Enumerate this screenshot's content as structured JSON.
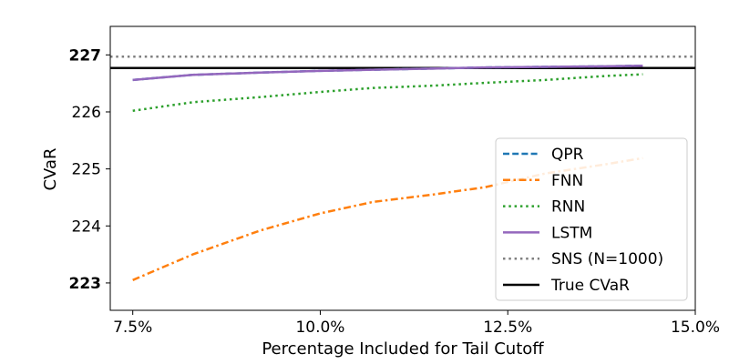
{
  "chart_data": {
    "type": "line",
    "title": "",
    "xlabel": "Percentage Included for Tail Cutoff",
    "ylabel": "CVaR",
    "xlim": [
      7.2,
      15.0
    ],
    "ylim": [
      222.52,
      227.5
    ],
    "grid": false,
    "legend_position": "bottom-right",
    "x_ticks": [
      {
        "value": 7.5,
        "label": "7.5%"
      },
      {
        "value": 10.0,
        "label": "10.0%"
      },
      {
        "value": 12.5,
        "label": "12.5%"
      },
      {
        "value": 15.0,
        "label": "15.0%"
      }
    ],
    "y_ticks": [
      {
        "value": 223,
        "label": "223",
        "bold": true
      },
      {
        "value": 224,
        "label": "224",
        "bold": false
      },
      {
        "value": 225,
        "label": "225",
        "bold": false
      },
      {
        "value": 226,
        "label": "226",
        "bold": false
      },
      {
        "value": 227,
        "label": "227",
        "bold": true
      }
    ],
    "series": [
      {
        "name": "QPR",
        "color": "#1f77b4",
        "style": "dashed",
        "x": [
          7.5,
          8.3,
          9.2,
          10.0,
          10.7,
          11.5,
          12.2,
          13.0,
          13.8,
          14.3
        ],
        "y": [
          226.56,
          226.65,
          226.69,
          226.72,
          226.74,
          226.76,
          226.78,
          226.79,
          226.8,
          226.81
        ]
      },
      {
        "name": "FNN",
        "color": "#ff7f0e",
        "style": "dashdot",
        "x": [
          7.5,
          8.3,
          9.2,
          10.0,
          10.7,
          11.5,
          12.2,
          13.0,
          13.8,
          14.3
        ],
        "y": [
          223.05,
          223.5,
          223.92,
          224.22,
          224.42,
          224.55,
          224.68,
          224.92,
          225.08,
          225.19
        ]
      },
      {
        "name": "RNN",
        "color": "#2ca02c",
        "style": "dotted",
        "x": [
          7.5,
          8.3,
          9.2,
          10.0,
          10.7,
          11.5,
          12.2,
          13.0,
          13.8,
          14.3
        ],
        "y": [
          226.02,
          226.17,
          226.26,
          226.35,
          226.42,
          226.46,
          226.51,
          226.56,
          226.63,
          226.66
        ]
      },
      {
        "name": "LSTM",
        "color": "#9467bd",
        "style": "solid",
        "x": [
          7.5,
          8.3,
          9.2,
          10.0,
          10.7,
          11.5,
          12.2,
          13.0,
          13.8,
          14.3
        ],
        "y": [
          226.56,
          226.65,
          226.69,
          226.72,
          226.74,
          226.76,
          226.78,
          226.79,
          226.8,
          226.81
        ]
      }
    ],
    "reference_lines": [
      {
        "name": "SNS (N=1000)",
        "color": "#7f7f7f",
        "style": "dotted",
        "y": 226.97
      },
      {
        "name": "True CVaR",
        "color": "#000000",
        "style": "solid",
        "y": 226.77
      }
    ],
    "legend": [
      "QPR",
      "FNN",
      "RNN",
      "LSTM",
      "SNS (N=1000)",
      "True CVaR"
    ]
  }
}
